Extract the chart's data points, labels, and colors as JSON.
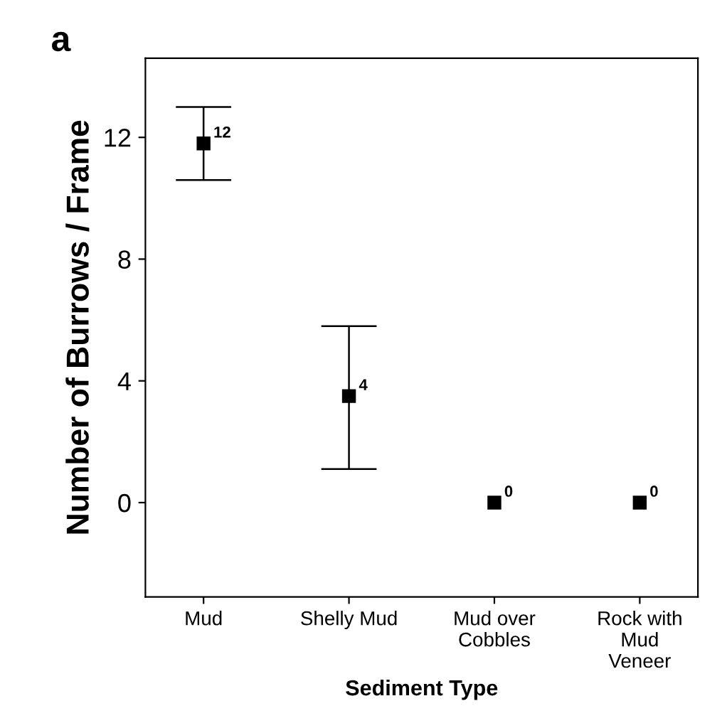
{
  "chart_data": {
    "type": "scatter",
    "title": "a",
    "xlabel": "Sediment Type",
    "ylabel": "Number of Burrows / Frame",
    "categories": [
      "Mud",
      "Shelly Mud",
      "Mud over\nCobbles",
      "Rock with\nMud\nVeneer"
    ],
    "values": [
      11.8,
      3.5,
      0,
      0
    ],
    "errors": [
      [
        10.6,
        13.0
      ],
      [
        1.1,
        5.8
      ],
      null,
      null
    ],
    "value_labels": [
      "12",
      "4",
      "0",
      "0"
    ],
    "color": "#000000",
    "marker": "square",
    "ylim": [
      -3.1,
      14.6
    ],
    "yticks": [
      0,
      4,
      8,
      12
    ],
    "grid": false
  }
}
